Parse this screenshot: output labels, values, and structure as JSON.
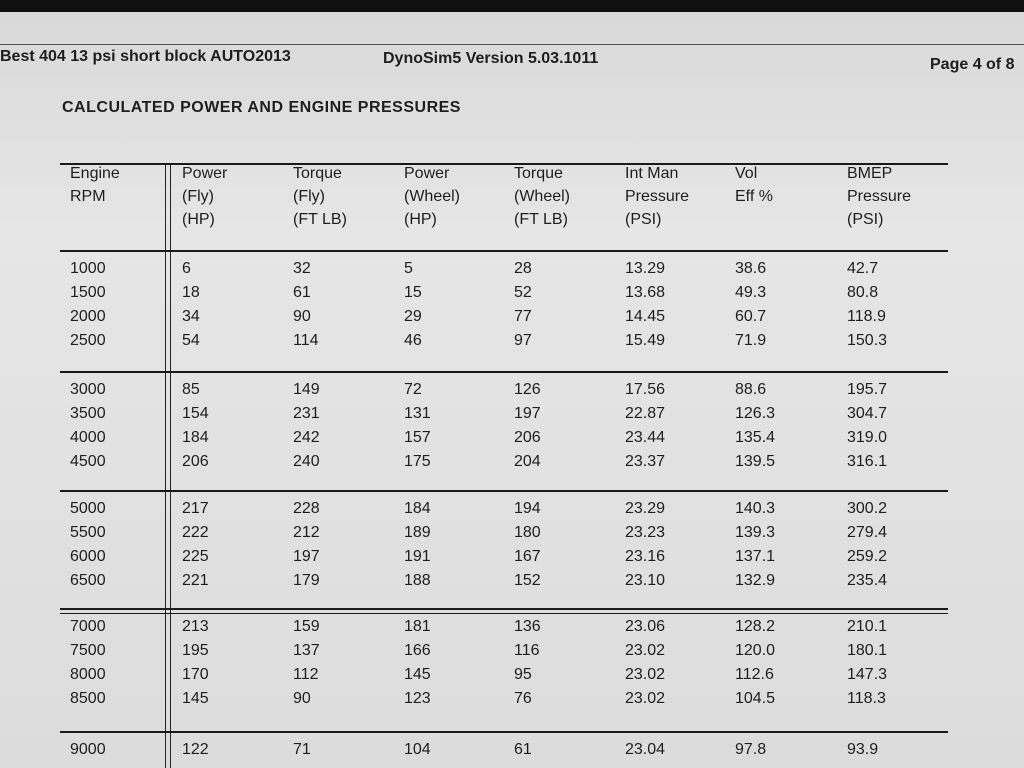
{
  "header": {
    "file": "Best 404 13 psi short block AUTO2013",
    "program": "DynoSim5 Version 5.03.1011",
    "page": "Page 4 of 8"
  },
  "section_title": "CALCULATED POWER AND ENGINE PRESSURES",
  "table": {
    "columns": [
      [
        "Engine",
        "RPM"
      ],
      [
        "Power",
        "(Fly)",
        "(HP)"
      ],
      [
        "Torque",
        "(Fly)",
        "(FT LB)"
      ],
      [
        "Power",
        "(Wheel)",
        "(HP)"
      ],
      [
        "Torque",
        "(Wheel)",
        "(FT LB)"
      ],
      [
        "Int Man",
        "Pressure",
        "(PSI)"
      ],
      [
        "Vol",
        "Eff %"
      ],
      [
        "BMEP",
        "Pressure",
        "(PSI)"
      ]
    ],
    "groups": [
      [
        [
          "1000",
          "6",
          "32",
          "5",
          "28",
          "13.29",
          "38.6",
          "42.7"
        ],
        [
          "1500",
          "18",
          "61",
          "15",
          "52",
          "13.68",
          "49.3",
          "80.8"
        ],
        [
          "2000",
          "34",
          "90",
          "29",
          "77",
          "14.45",
          "60.7",
          "118.9"
        ],
        [
          "2500",
          "54",
          "114",
          "46",
          "97",
          "15.49",
          "71.9",
          "150.3"
        ]
      ],
      [
        [
          "3000",
          "85",
          "149",
          "72",
          "126",
          "17.56",
          "88.6",
          "195.7"
        ],
        [
          "3500",
          "154",
          "231",
          "131",
          "197",
          "22.87",
          "126.3",
          "304.7"
        ],
        [
          "4000",
          "184",
          "242",
          "157",
          "206",
          "23.44",
          "135.4",
          "319.0"
        ],
        [
          "4500",
          "206",
          "240",
          "175",
          "204",
          "23.37",
          "139.5",
          "316.1"
        ]
      ],
      [
        [
          "5000",
          "217",
          "228",
          "184",
          "194",
          "23.29",
          "140.3",
          "300.2"
        ],
        [
          "5500",
          "222",
          "212",
          "189",
          "180",
          "23.23",
          "139.3",
          "279.4"
        ],
        [
          "6000",
          "225",
          "197",
          "191",
          "167",
          "23.16",
          "137.1",
          "259.2"
        ],
        [
          "6500",
          "221",
          "179",
          "188",
          "152",
          "23.10",
          "132.9",
          "235.4"
        ]
      ],
      [
        [
          "7000",
          "213",
          "159",
          "181",
          "136",
          "23.06",
          "128.2",
          "210.1"
        ],
        [
          "7500",
          "195",
          "137",
          "166",
          "116",
          "23.02",
          "120.0",
          "180.1"
        ],
        [
          "8000",
          "170",
          "112",
          "145",
          "95",
          "23.02",
          "112.6",
          "147.3"
        ],
        [
          "8500",
          "145",
          "90",
          "123",
          "76",
          "23.02",
          "104.5",
          "118.3"
        ]
      ],
      [
        [
          "9000",
          "122",
          "71",
          "104",
          "61",
          "23.04",
          "97.8",
          "93.9"
        ]
      ]
    ]
  }
}
